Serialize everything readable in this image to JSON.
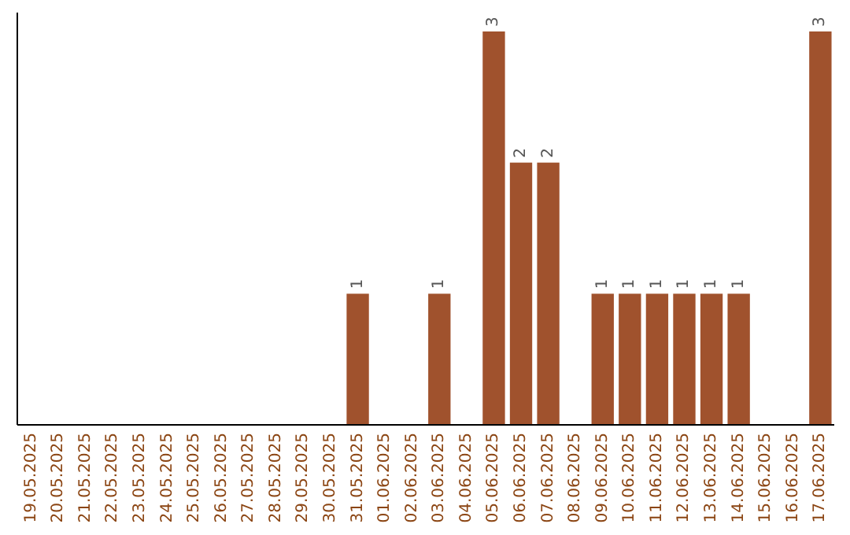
{
  "chart_data": {
    "type": "bar",
    "categories": [
      "19.05.2025",
      "20.05.2025",
      "21.05.2025",
      "22.05.2025",
      "23.05.2025",
      "24.05.2025",
      "25.05.2025",
      "26.05.2025",
      "27.05.2025",
      "28.05.2025",
      "29.05.2025",
      "30.05.2025",
      "31.05.2025",
      "01.06.2025",
      "02.06.2025",
      "03.06.2025",
      "04.06.2025",
      "05.06.2025",
      "06.06.2025",
      "07.06.2025",
      "08.06.2025",
      "09.06.2025",
      "10.06.2025",
      "11.06.2025",
      "12.06.2025",
      "13.06.2025",
      "14.06.2025",
      "15.06.2025",
      "16.06.2025",
      "17.06.2025"
    ],
    "values": [
      null,
      null,
      null,
      null,
      null,
      null,
      null,
      null,
      null,
      null,
      null,
      null,
      1,
      null,
      null,
      1,
      null,
      3,
      2,
      2,
      null,
      1,
      1,
      1,
      1,
      1,
      1,
      null,
      null,
      3
    ],
    "value_labels": [
      null,
      null,
      null,
      null,
      null,
      null,
      null,
      null,
      null,
      null,
      null,
      null,
      "1",
      null,
      null,
      "1",
      null,
      "3",
      "2",
      "2",
      null,
      "1",
      "1",
      "1",
      "1",
      "1",
      "1",
      null,
      null,
      "3"
    ],
    "color": "#a0522d",
    "tick_labels": "x"
  }
}
